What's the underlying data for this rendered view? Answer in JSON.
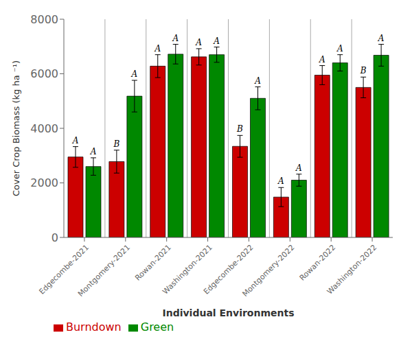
{
  "chart_data": {
    "type": "bar",
    "xlabel": "Individual Environments",
    "ylabel": "Cover Crop Biomass (kg ha ⁻¹)",
    "categories": [
      "Edgecombe-2021",
      "Montgomery-2021",
      "Rowan-2021",
      "Washington-2021",
      "Edgecombe-2022",
      "Montgomery-2022",
      "Rowan-2022",
      "Washington-2022"
    ],
    "series": [
      {
        "name": "Burndown",
        "color": "#cc0000",
        "values": [
          2950,
          2780,
          6280,
          6620,
          3340,
          1480,
          5950,
          5500
        ],
        "errors": [
          380,
          420,
          420,
          300,
          400,
          350,
          350,
          380
        ],
        "annotations": [
          "A",
          "B",
          "A",
          "A",
          "B",
          "A",
          "A",
          "B"
        ]
      },
      {
        "name": "Green",
        "color": "#008800",
        "values": [
          2600,
          5180,
          6720,
          6700,
          5100,
          2100,
          6400,
          6680
        ],
        "errors": [
          320,
          580,
          360,
          280,
          420,
          220,
          300,
          400
        ],
        "annotations": [
          "A",
          "A",
          "A",
          "A",
          "A",
          "A",
          "A",
          "A"
        ]
      }
    ],
    "ylim": [
      0,
      8000
    ],
    "yticks": [
      0,
      2000,
      4000,
      6000,
      8000
    ],
    "legend": "lower left"
  }
}
